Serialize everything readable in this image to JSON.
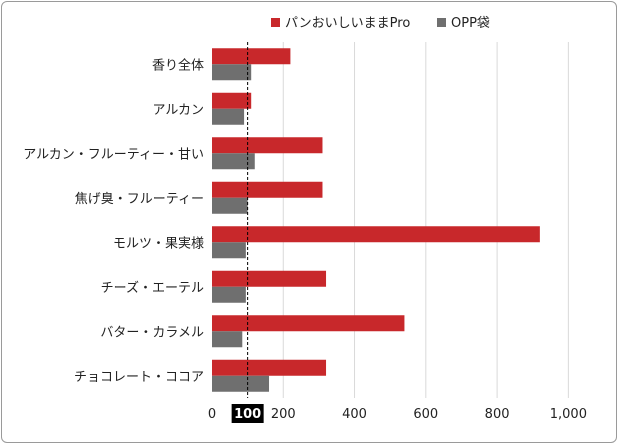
{
  "chart_data": {
    "type": "bar",
    "orientation": "horizontal",
    "categories": [
      "香り全体",
      "アルカン",
      "アルカン・フルーティー・甘い",
      "焦げ臭・フルーティー",
      "モルツ・果実様",
      "チーズ・エーテル",
      "バター・カラメル",
      "チョコレート・ココア"
    ],
    "series": [
      {
        "name": "パンおいしいままPro",
        "color": "#c8282b",
        "values": [
          220,
          110,
          310,
          310,
          920,
          320,
          540,
          320
        ]
      },
      {
        "name": "OPP袋",
        "color": "#6f6f6f",
        "values": [
          110,
          90,
          120,
          100,
          95,
          95,
          85,
          160
        ]
      }
    ],
    "xlim": [
      0,
      1100
    ],
    "xticks": [
      0,
      200,
      400,
      600,
      800,
      1000
    ],
    "xtick_labels": [
      "0",
      "200",
      "400",
      "600",
      "800",
      "1,000"
    ],
    "reference_line": {
      "value": 100,
      "label": "100",
      "style": "dashed"
    },
    "grid": {
      "vertical": true,
      "horizontal": false
    },
    "legend_position": "top",
    "title": "",
    "xlabel": "",
    "ylabel": ""
  }
}
